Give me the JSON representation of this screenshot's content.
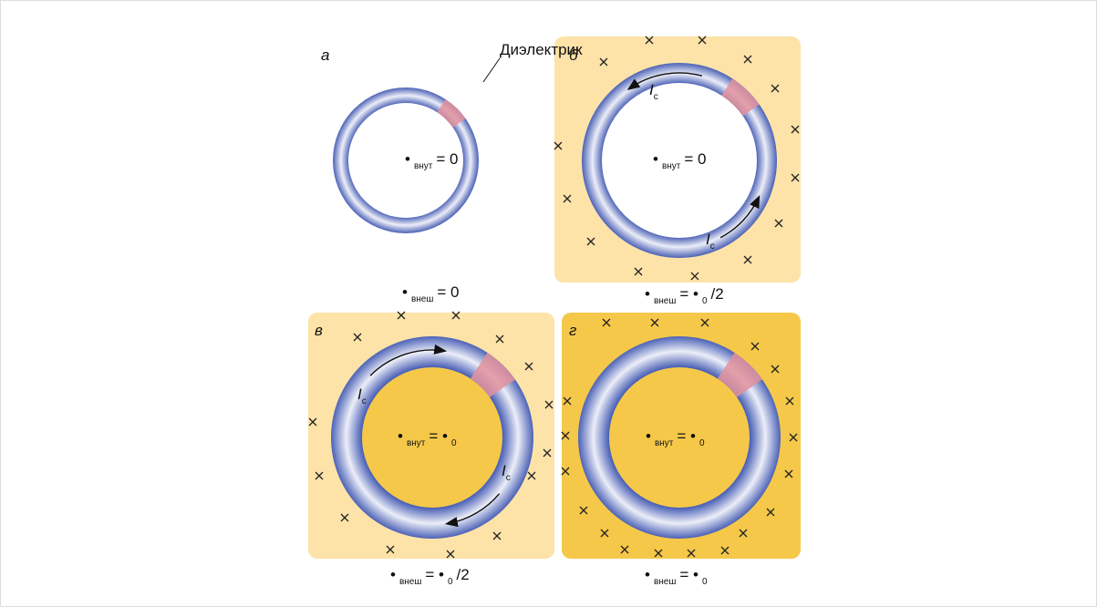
{
  "dielectric_label": "Диэлектрик",
  "panels": [
    {
      "label": "а",
      "inner_formula": [
        {
          "text": "•"
        },
        {
          "text": "внут",
          "sub": true
        },
        {
          "text": "= 0"
        }
      ],
      "outer_formula": [
        {
          "text": "•"
        },
        {
          "text": "внеш",
          "sub": true
        },
        {
          "text": "= 0"
        }
      ],
      "currents": []
    },
    {
      "label": "б",
      "inner_formula": [
        {
          "text": "•"
        },
        {
          "text": "внут",
          "sub": true
        },
        {
          "text": "= 0"
        }
      ],
      "outer_formula": [
        {
          "text": "•"
        },
        {
          "text": "внеш",
          "sub": true
        },
        {
          "text": "= •"
        },
        {
          "text": "0",
          "sub": true
        },
        {
          "text": "/2"
        }
      ],
      "currents": [
        {
          "text": "I",
          "sub": "c"
        },
        {
          "text": "I",
          "sub": "c"
        }
      ]
    },
    {
      "label": "в",
      "inner_formula": [
        {
          "text": "•"
        },
        {
          "text": "внут",
          "sub": true
        },
        {
          "text": "= •"
        },
        {
          "text": "0",
          "sub": true
        }
      ],
      "outer_formula": [
        {
          "text": "•"
        },
        {
          "text": "внеш",
          "sub": true
        },
        {
          "text": "= •"
        },
        {
          "text": "0",
          "sub": true
        },
        {
          "text": "/2"
        }
      ],
      "currents": [
        {
          "text": "I",
          "sub": "c"
        },
        {
          "text": "I",
          "sub": "c"
        }
      ]
    },
    {
      "label": "г",
      "inner_formula": [
        {
          "text": "•"
        },
        {
          "text": "внут",
          "sub": true
        },
        {
          "text": "= •"
        },
        {
          "text": "0",
          "sub": true
        }
      ],
      "outer_formula": [
        {
          "text": "•"
        },
        {
          "text": "внеш",
          "sub": true
        },
        {
          "text": "= •"
        },
        {
          "text": "0",
          "sub": true
        }
      ],
      "currents": []
    }
  ]
}
